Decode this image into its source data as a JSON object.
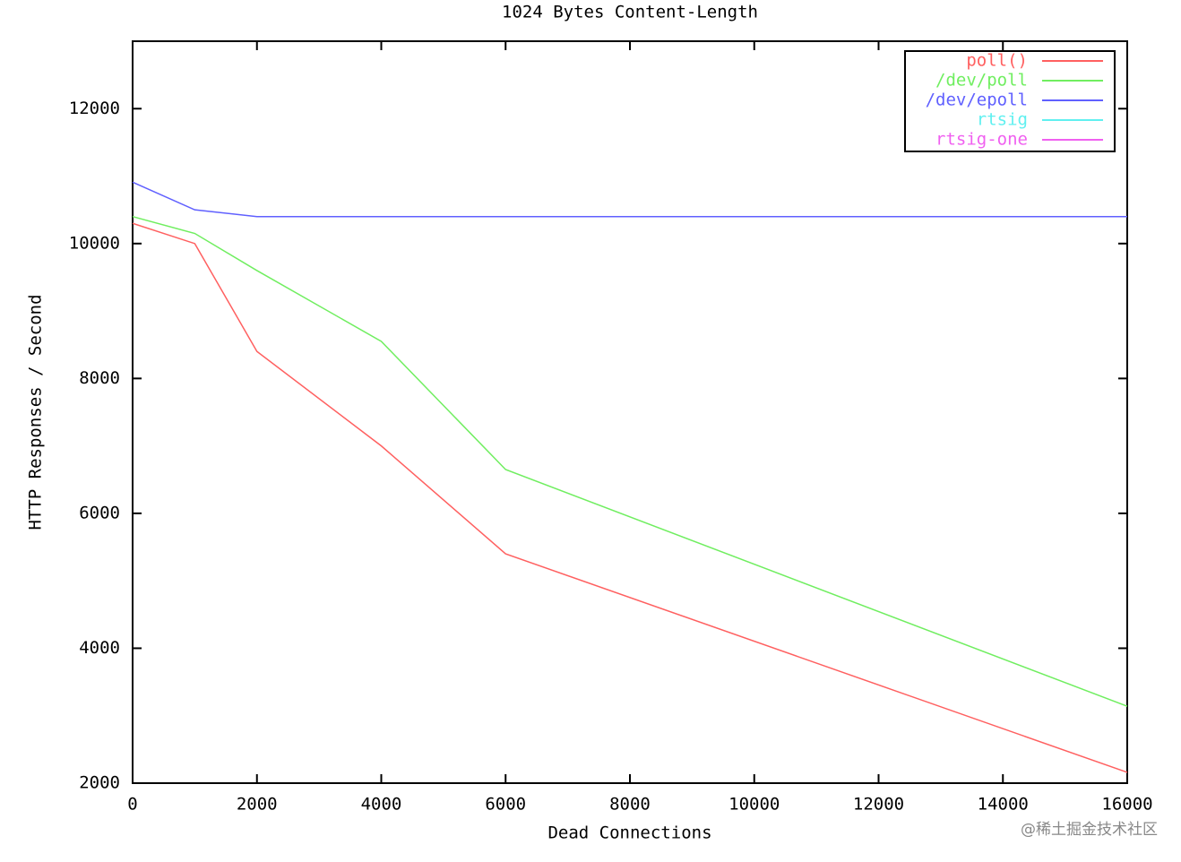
{
  "chart_data": {
    "type": "line",
    "title": "1024 Bytes Content-Length",
    "x_label": "Dead Connections",
    "y_label": "HTTP Responses / Second",
    "x": [
      0,
      1000,
      2000,
      4000,
      6000,
      16000
    ],
    "series": [
      {
        "name": "poll()",
        "color": "#ff6060",
        "values": [
          10300,
          10000,
          8400,
          7000,
          5400,
          2160
        ]
      },
      {
        "name": "/dev/poll",
        "color": "#70ee60",
        "values": [
          10400,
          10150,
          9600,
          8550,
          6650,
          3140
        ]
      },
      {
        "name": "/dev/epoll",
        "color": "#6060ff",
        "values": [
          10910,
          10500,
          10400,
          10400,
          10400,
          10400
        ]
      },
      {
        "name": "rtsig",
        "color": "#60f0f0",
        "values": [
          null,
          null,
          null,
          null,
          null,
          null
        ]
      },
      {
        "name": "rtsig-one",
        "color": "#f060f0",
        "values": [
          null,
          null,
          null,
          null,
          null,
          null
        ]
      }
    ],
    "xlim": [
      0,
      16000
    ],
    "xticks": [
      0,
      2000,
      4000,
      6000,
      8000,
      10000,
      12000,
      14000,
      16000
    ],
    "ylim": [
      2000,
      13000
    ],
    "yticks": [
      2000,
      4000,
      6000,
      8000,
      10000,
      12000
    ],
    "legend": "top-right"
  },
  "watermark": "@稀土掘金技术社区"
}
